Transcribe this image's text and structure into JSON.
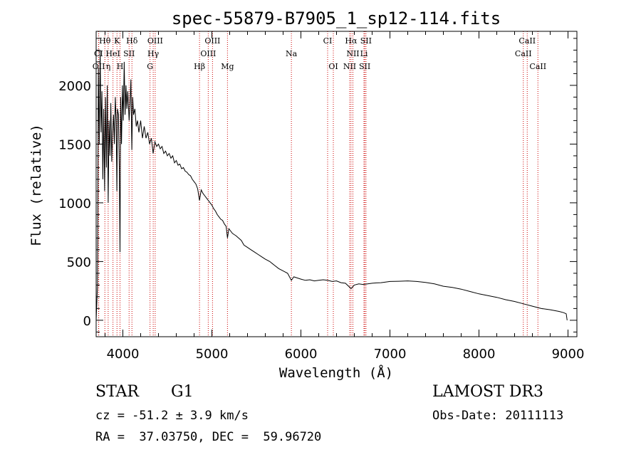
{
  "chart_data": {
    "type": "line",
    "title": "spec-55879-B7905_1_sp12-114.fits",
    "xlabel": "Wavelength (Å)",
    "ylabel": "Flux (relative)",
    "xlim": [
      3700,
      9100
    ],
    "ylim": [
      -140,
      2460
    ],
    "x_ticks": [
      4000,
      5000,
      6000,
      7000,
      8000,
      9000
    ],
    "y_ticks": [
      0,
      500,
      1000,
      1500,
      2000
    ],
    "grid": false,
    "series": [
      {
        "name": "flux",
        "color": "#000000",
        "points": [
          [
            3700,
            0
          ],
          [
            3715,
            300
          ],
          [
            3725,
            2150
          ],
          [
            3735,
            1500
          ],
          [
            3745,
            2300
          ],
          [
            3755,
            1600
          ],
          [
            3765,
            1950
          ],
          [
            3775,
            1200
          ],
          [
            3785,
            1800
          ],
          [
            3795,
            1100
          ],
          [
            3805,
            1900
          ],
          [
            3815,
            1300
          ],
          [
            3825,
            2000
          ],
          [
            3835,
            1000
          ],
          [
            3845,
            1700
          ],
          [
            3855,
            1400
          ],
          [
            3865,
            1850
          ],
          [
            3875,
            1350
          ],
          [
            3885,
            1600
          ],
          [
            3895,
            1750
          ],
          [
            3905,
            1500
          ],
          [
            3915,
            1900
          ],
          [
            3925,
            1700
          ],
          [
            3933,
            1100
          ],
          [
            3940,
            1800
          ],
          [
            3950,
            1750
          ],
          [
            3960,
            1300
          ],
          [
            3968,
            580
          ],
          [
            3975,
            1900
          ],
          [
            3985,
            1500
          ],
          [
            3995,
            2000
          ],
          [
            4005,
            1700
          ],
          [
            4015,
            2200
          ],
          [
            4025,
            1750
          ],
          [
            4035,
            2000
          ],
          [
            4045,
            1800
          ],
          [
            4055,
            1950
          ],
          [
            4070,
            1700
          ],
          [
            4080,
            1850
          ],
          [
            4090,
            2050
          ],
          [
            4101,
            1450
          ],
          [
            4110,
            1900
          ],
          [
            4120,
            1750
          ],
          [
            4135,
            1800
          ],
          [
            4150,
            1650
          ],
          [
            4165,
            1700
          ],
          [
            4180,
            1600
          ],
          [
            4200,
            1700
          ],
          [
            4220,
            1550
          ],
          [
            4240,
            1650
          ],
          [
            4260,
            1550
          ],
          [
            4280,
            1600
          ],
          [
            4300,
            1500
          ],
          [
            4320,
            1550
          ],
          [
            4340,
            1420
          ],
          [
            4360,
            1520
          ],
          [
            4380,
            1480
          ],
          [
            4400,
            1500
          ],
          [
            4420,
            1460
          ],
          [
            4440,
            1480
          ],
          [
            4460,
            1420
          ],
          [
            4480,
            1440
          ],
          [
            4500,
            1400
          ],
          [
            4520,
            1420
          ],
          [
            4540,
            1380
          ],
          [
            4560,
            1400
          ],
          [
            4580,
            1340
          ],
          [
            4600,
            1360
          ],
          [
            4620,
            1320
          ],
          [
            4640,
            1330
          ],
          [
            4660,
            1290
          ],
          [
            4680,
            1300
          ],
          [
            4700,
            1270
          ],
          [
            4720,
            1260
          ],
          [
            4740,
            1240
          ],
          [
            4760,
            1230
          ],
          [
            4780,
            1200
          ],
          [
            4800,
            1180
          ],
          [
            4820,
            1160
          ],
          [
            4840,
            1120
          ],
          [
            4861,
            1020
          ],
          [
            4880,
            1110
          ],
          [
            4900,
            1080
          ],
          [
            4920,
            1060
          ],
          [
            4940,
            1040
          ],
          [
            4960,
            1020
          ],
          [
            4980,
            1000
          ],
          [
            5000,
            980
          ],
          [
            5020,
            950
          ],
          [
            5040,
            930
          ],
          [
            5060,
            900
          ],
          [
            5080,
            880
          ],
          [
            5100,
            860
          ],
          [
            5120,
            850
          ],
          [
            5140,
            820
          ],
          [
            5160,
            800
          ],
          [
            5175,
            700
          ],
          [
            5190,
            780
          ],
          [
            5210,
            760
          ],
          [
            5230,
            740
          ],
          [
            5250,
            730
          ],
          [
            5270,
            720
          ],
          [
            5300,
            700
          ],
          [
            5330,
            680
          ],
          [
            5360,
            640
          ],
          [
            5400,
            620
          ],
          [
            5440,
            600
          ],
          [
            5480,
            580
          ],
          [
            5520,
            560
          ],
          [
            5560,
            540
          ],
          [
            5600,
            520
          ],
          [
            5650,
            500
          ],
          [
            5700,
            470
          ],
          [
            5750,
            440
          ],
          [
            5800,
            420
          ],
          [
            5850,
            400
          ],
          [
            5893,
            340
          ],
          [
            5920,
            370
          ],
          [
            5960,
            360
          ],
          [
            6000,
            350
          ],
          [
            6050,
            340
          ],
          [
            6100,
            345
          ],
          [
            6150,
            335
          ],
          [
            6200,
            340
          ],
          [
            6250,
            345
          ],
          [
            6300,
            340
          ],
          [
            6350,
            330
          ],
          [
            6400,
            335
          ],
          [
            6450,
            320
          ],
          [
            6500,
            315
          ],
          [
            6563,
            270
          ],
          [
            6600,
            300
          ],
          [
            6650,
            310
          ],
          [
            6700,
            305
          ],
          [
            6750,
            310
          ],
          [
            6800,
            315
          ],
          [
            6850,
            318
          ],
          [
            6900,
            320
          ],
          [
            6950,
            325
          ],
          [
            7000,
            330
          ],
          [
            7100,
            332
          ],
          [
            7200,
            335
          ],
          [
            7300,
            330
          ],
          [
            7400,
            322
          ],
          [
            7500,
            310
          ],
          [
            7600,
            290
          ],
          [
            7700,
            280
          ],
          [
            7800,
            265
          ],
          [
            7900,
            245
          ],
          [
            8000,
            225
          ],
          [
            8100,
            210
          ],
          [
            8200,
            195
          ],
          [
            8300,
            175
          ],
          [
            8400,
            160
          ],
          [
            8500,
            140
          ],
          [
            8600,
            120
          ],
          [
            8700,
            100
          ],
          [
            8800,
            90
          ],
          [
            8900,
            75
          ],
          [
            8950,
            65
          ],
          [
            8980,
            55
          ],
          [
            8990,
            0
          ]
        ]
      }
    ],
    "spectral_lines": [
      {
        "label": "Hθ",
        "wavelength": 3798,
        "row": 1
      },
      {
        "label": "K",
        "wavelength": 3934,
        "row": 1
      },
      {
        "label": "Hδ",
        "wavelength": 4102,
        "row": 1
      },
      {
        "label": "OIII",
        "wavelength": 4363,
        "row": 1
      },
      {
        "label": "OIII",
        "wavelength": 5007,
        "row": 1
      },
      {
        "label": "CI",
        "wavelength": 6300,
        "row": 1
      },
      {
        "label": "Hα",
        "wavelength": 6563,
        "row": 1
      },
      {
        "label": "SII",
        "wavelength": 6731,
        "row": 1
      },
      {
        "label": "CaII",
        "wavelength": 8542,
        "row": 1
      },
      {
        "label": "CI",
        "wavelength": 3727,
        "row": 2
      },
      {
        "label": "HeI",
        "wavelength": 3889,
        "row": 2
      },
      {
        "label": "SII",
        "wavelength": 4070,
        "row": 2
      },
      {
        "label": "Hγ",
        "wavelength": 4341,
        "row": 2
      },
      {
        "label": "OIII",
        "wavelength": 4959,
        "row": 2
      },
      {
        "label": "Na",
        "wavelength": 5893,
        "row": 2
      },
      {
        "label": "NII",
        "wavelength": 6584,
        "row": 2
      },
      {
        "label": "Li",
        "wavelength": 6708,
        "row": 2
      },
      {
        "label": "CaII",
        "wavelength": 8498,
        "row": 2
      },
      {
        "label": "OII",
        "wavelength": 3729,
        "row": 3
      },
      {
        "label": "η",
        "wavelength": 3835,
        "row": 3
      },
      {
        "label": "H",
        "wavelength": 3968,
        "row": 3
      },
      {
        "label": "G",
        "wavelength": 4305,
        "row": 3
      },
      {
        "label": "Hβ",
        "wavelength": 4861,
        "row": 3
      },
      {
        "label": "Mg",
        "wavelength": 5175,
        "row": 3
      },
      {
        "label": "OI",
        "wavelength": 6364,
        "row": 3
      },
      {
        "label": "NII",
        "wavelength": 6548,
        "row": 3
      },
      {
        "label": "SII",
        "wavelength": 6717,
        "row": 3
      },
      {
        "label": "CaII",
        "wavelength": 8662,
        "row": 3
      }
    ]
  },
  "info": {
    "class_label": "STAR",
    "subclass": "G1",
    "survey": "LAMOST DR3",
    "cz": "cz = -51.2 ± 3.9 km/s",
    "obs_date": "Obs-Date: 20111113",
    "coords": "RA =  37.03750, DEC =  59.96720"
  },
  "colors": {
    "line_marker": "#cc0000",
    "spectrum": "#000000",
    "axis": "#000000"
  }
}
